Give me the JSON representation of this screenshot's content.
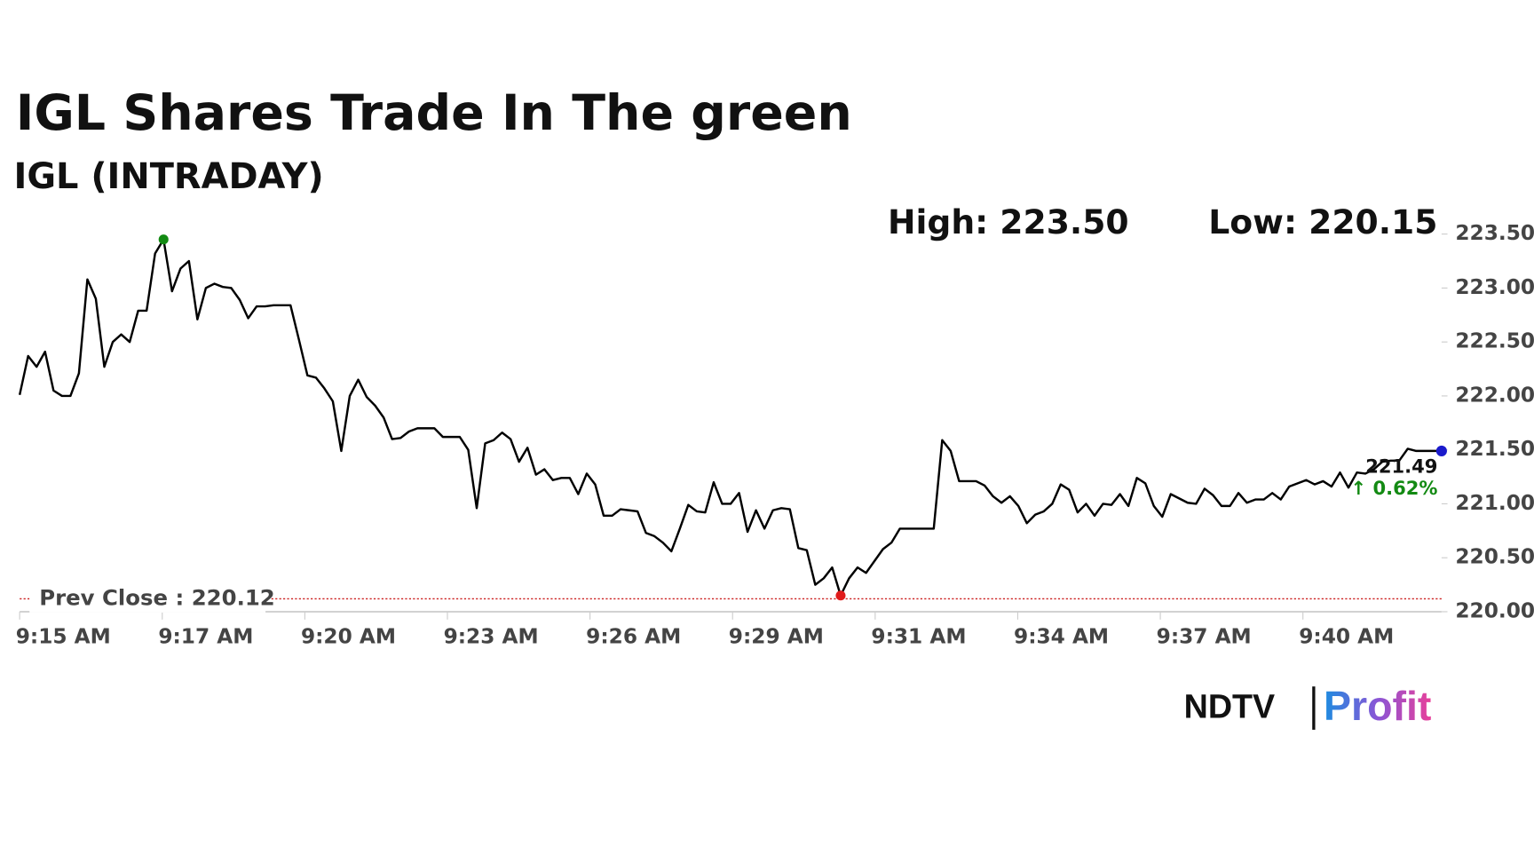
{
  "chart_data": {
    "type": "line",
    "title": "IGL Shares Trade In The green",
    "subtitle": "IGL (INTRADAY)",
    "high_label": "High: 223.50",
    "low_label": "Low: 220.15",
    "prev_close": 220.12,
    "prev_close_label": "Prev Close : 220.12",
    "last_label": "221.49",
    "change_label": "↑ 0.62%",
    "brand": [
      "NDTV",
      "Profit"
    ],
    "x_tick_labels": [
      "9:15 AM",
      "9:17 AM",
      "9:20 AM",
      "9:23 AM",
      "9:26 AM",
      "9:29 AM",
      "9:31 AM",
      "9:34 AM",
      "9:37 AM",
      "9:40 AM"
    ],
    "color": "#000000",
    "high_color": "#138a13",
    "low_color": "#e01b1b",
    "last_color": "#1a1acc",
    "prev_close_color": "#cc2222",
    "ylim": [
      220,
      223.5
    ],
    "yticks": [
      {
        "value": 220,
        "label": "220.00"
      },
      {
        "value": 220.5,
        "label": "220.50"
      },
      {
        "value": 221,
        "label": "221.00"
      },
      {
        "value": 221.5,
        "label": "221.50"
      },
      {
        "value": 222,
        "label": "222.00"
      },
      {
        "value": 222.5,
        "label": "222.50"
      },
      {
        "value": 223,
        "label": "223.00"
      },
      {
        "value": 223.5,
        "label": "223.50"
      }
    ],
    "values": [
      222.01,
      222.37,
      222.27,
      222.41,
      222.05,
      222.0,
      222.0,
      222.21,
      223.08,
      222.9,
      222.27,
      222.5,
      222.57,
      222.5,
      222.79,
      222.79,
      223.32,
      223.45,
      222.97,
      223.18,
      223.25,
      222.71,
      223.0,
      223.04,
      223.01,
      223.0,
      222.89,
      222.72,
      222.83,
      222.83,
      222.84,
      222.84,
      222.84,
      222.52,
      222.19,
      222.17,
      222.07,
      221.95,
      221.49,
      222.0,
      222.15,
      221.99,
      221.91,
      221.8,
      221.6,
      221.61,
      221.67,
      221.7,
      221.7,
      221.7,
      221.62,
      221.62,
      221.62,
      221.5,
      220.96,
      221.56,
      221.59,
      221.66,
      221.6,
      221.39,
      221.52,
      221.27,
      221.32,
      221.22,
      221.24,
      221.24,
      221.09,
      221.28,
      221.18,
      220.89,
      220.89,
      220.95,
      220.94,
      220.93,
      220.73,
      220.7,
      220.64,
      220.56,
      220.77,
      220.99,
      220.93,
      220.92,
      221.2,
      221.0,
      221.0,
      221.1,
      220.74,
      220.94,
      220.77,
      220.94,
      220.96,
      220.95,
      220.59,
      220.57,
      220.25,
      220.31,
      220.41,
      220.15,
      220.31,
      220.41,
      220.36,
      220.47,
      220.58,
      220.64,
      220.77,
      220.77,
      220.77,
      220.77,
      220.77,
      221.59,
      221.49,
      221.21,
      221.21,
      221.21,
      221.17,
      221.07,
      221.01,
      221.07,
      220.98,
      220.82,
      220.9,
      220.93,
      221.0,
      221.18,
      221.13,
      220.92,
      221.0,
      220.89,
      221.0,
      220.99,
      221.09,
      220.98,
      221.24,
      221.19,
      220.98,
      220.88,
      221.09,
      221.05,
      221.01,
      221.0,
      221.14,
      221.08,
      220.98,
      220.98,
      221.1,
      221.01,
      221.04,
      221.04,
      221.1,
      221.04,
      221.16,
      221.19,
      221.22,
      221.18,
      221.21,
      221.16,
      221.29,
      221.15,
      221.29,
      221.28,
      221.32,
      221.39,
      221.4,
      221.4,
      221.51,
      221.49,
      221.49,
      221.49,
      221.49
    ]
  }
}
